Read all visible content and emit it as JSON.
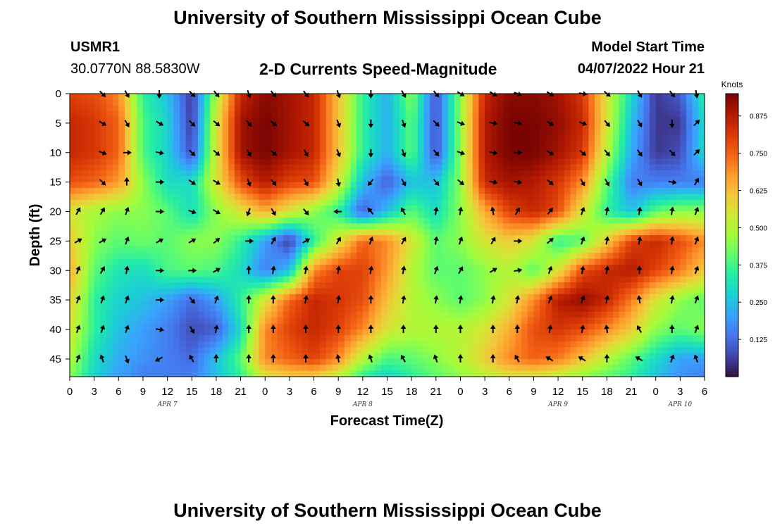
{
  "header": {
    "title": "University of Southern Mississippi Ocean Cube",
    "station": "USMR1",
    "coords": "30.0770N  88.5830W",
    "subtitle": "2-D Currents Speed-Magnitude",
    "model_label": "Model Start Time",
    "model_time": "04/07/2022 Hour 21",
    "footer_title": "University of Southern Mississippi Ocean Cube"
  },
  "colors": {
    "colormap": [
      "#30123b",
      "#4145ab",
      "#4675ed",
      "#39a2fc",
      "#1bcfd4",
      "#24eca6",
      "#61fc6c",
      "#a4fc3b",
      "#d1e834",
      "#f3c63a",
      "#fe9b2d",
      "#f36315",
      "#d93806",
      "#b11901",
      "#7a0402"
    ],
    "arrow": "#000000"
  },
  "chart_data": {
    "type": "heatmap",
    "title": "2-D Currents Speed-Magnitude",
    "xlabel": "Forecast Time(Z)",
    "ylabel": "Depth (ft)",
    "x_range_hours": [
      0,
      78
    ],
    "y_range_ft": [
      0,
      48
    ],
    "y_inverted": true,
    "x_tick_hours": [
      0,
      3,
      6,
      9,
      12,
      15,
      18,
      21,
      24,
      27,
      30,
      33,
      36,
      39,
      42,
      45,
      48,
      51,
      54,
      57,
      60,
      63,
      66,
      69,
      72,
      75,
      78
    ],
    "x_tick_labels": [
      "0",
      "3",
      "6",
      "9",
      "12",
      "15",
      "18",
      "21",
      "0",
      "3",
      "6",
      "9",
      "12",
      "15",
      "18",
      "21",
      "0",
      "3",
      "6",
      "9",
      "12",
      "15",
      "18",
      "21",
      "0",
      "3",
      "6"
    ],
    "y_ticks": [
      0,
      5,
      10,
      15,
      20,
      25,
      30,
      35,
      40,
      45
    ],
    "date_labels": [
      {
        "text": "APR 7",
        "hour": 12
      },
      {
        "text": "APR 8",
        "hour": 36
      },
      {
        "text": "APR 9",
        "hour": 60
      },
      {
        "text": "APR 10",
        "hour": 75
      }
    ],
    "colorbar": {
      "label": "Knots",
      "min": 0.0,
      "max": 0.95,
      "ticks": [
        "0.875",
        "0.750",
        "0.625",
        "0.500",
        "0.375",
        "0.250",
        "0.125"
      ],
      "tick_values": [
        0.875,
        0.75,
        0.625,
        0.5,
        0.375,
        0.25,
        0.125
      ]
    },
    "speed_hours": [
      0,
      3,
      6,
      9,
      12,
      15,
      18,
      21,
      24,
      27,
      30,
      33,
      36,
      39,
      42,
      45,
      48,
      51,
      54,
      57,
      60,
      63,
      66,
      69,
      72,
      75,
      78
    ],
    "speed_depths_ft": [
      0,
      5,
      10,
      15,
      20,
      25,
      30,
      35,
      40,
      45,
      48
    ],
    "speed_knots": [
      [
        0.8,
        0.78,
        0.7,
        0.35,
        0.25,
        0.05,
        0.48,
        0.85,
        0.93,
        0.9,
        0.85,
        0.62,
        0.35,
        0.22,
        0.45,
        0.08,
        0.45,
        0.85,
        0.93,
        0.93,
        0.9,
        0.82,
        0.55,
        0.3,
        0.05,
        0.1,
        0.35
      ],
      [
        0.85,
        0.82,
        0.75,
        0.38,
        0.28,
        0.05,
        0.55,
        0.9,
        0.95,
        0.9,
        0.85,
        0.62,
        0.35,
        0.22,
        0.4,
        0.08,
        0.45,
        0.88,
        0.95,
        0.95,
        0.92,
        0.85,
        0.55,
        0.25,
        0.05,
        0.05,
        0.3
      ],
      [
        0.85,
        0.82,
        0.75,
        0.38,
        0.28,
        0.08,
        0.55,
        0.9,
        0.95,
        0.9,
        0.85,
        0.62,
        0.35,
        0.22,
        0.4,
        0.08,
        0.45,
        0.88,
        0.95,
        0.95,
        0.9,
        0.82,
        0.5,
        0.22,
        0.05,
        0.08,
        0.3
      ],
      [
        0.78,
        0.75,
        0.68,
        0.45,
        0.3,
        0.3,
        0.55,
        0.78,
        0.88,
        0.8,
        0.78,
        0.55,
        0.25,
        0.1,
        0.25,
        0.25,
        0.45,
        0.85,
        0.9,
        0.88,
        0.82,
        0.7,
        0.4,
        0.15,
        0.15,
        0.15,
        0.15
      ],
      [
        0.55,
        0.48,
        0.45,
        0.45,
        0.4,
        0.3,
        0.45,
        0.55,
        0.65,
        0.55,
        0.45,
        0.35,
        0.1,
        0.25,
        0.4,
        0.3,
        0.45,
        0.65,
        0.8,
        0.85,
        0.78,
        0.55,
        0.35,
        0.25,
        0.4,
        0.45,
        0.45
      ],
      [
        0.6,
        0.45,
        0.4,
        0.42,
        0.4,
        0.45,
        0.45,
        0.35,
        0.2,
        0.05,
        0.35,
        0.55,
        0.75,
        0.7,
        0.55,
        0.4,
        0.45,
        0.55,
        0.6,
        0.55,
        0.35,
        0.4,
        0.6,
        0.8,
        0.85,
        0.78,
        0.7
      ],
      [
        0.65,
        0.4,
        0.32,
        0.3,
        0.38,
        0.4,
        0.38,
        0.3,
        0.15,
        0.25,
        0.7,
        0.8,
        0.8,
        0.68,
        0.5,
        0.4,
        0.4,
        0.45,
        0.5,
        0.4,
        0.55,
        0.78,
        0.85,
        0.88,
        0.8,
        0.72,
        0.6
      ],
      [
        0.6,
        0.35,
        0.28,
        0.25,
        0.2,
        0.12,
        0.2,
        0.35,
        0.55,
        0.75,
        0.85,
        0.82,
        0.78,
        0.62,
        0.5,
        0.45,
        0.4,
        0.45,
        0.55,
        0.7,
        0.88,
        0.92,
        0.85,
        0.72,
        0.55,
        0.45,
        0.4
      ],
      [
        0.55,
        0.35,
        0.25,
        0.2,
        0.15,
        0.08,
        0.1,
        0.3,
        0.7,
        0.8,
        0.85,
        0.8,
        0.7,
        0.55,
        0.5,
        0.5,
        0.5,
        0.55,
        0.65,
        0.78,
        0.82,
        0.78,
        0.7,
        0.6,
        0.45,
        0.4,
        0.45
      ],
      [
        0.5,
        0.3,
        0.22,
        0.18,
        0.15,
        0.12,
        0.25,
        0.4,
        0.7,
        0.75,
        0.8,
        0.7,
        0.5,
        0.38,
        0.4,
        0.45,
        0.5,
        0.6,
        0.7,
        0.75,
        0.72,
        0.62,
        0.5,
        0.4,
        0.3,
        0.2,
        0.2
      ],
      [
        0.45,
        0.28,
        0.2,
        0.15,
        0.15,
        0.15,
        0.25,
        0.35,
        0.55,
        0.6,
        0.6,
        0.5,
        0.35,
        0.28,
        0.35,
        0.4,
        0.45,
        0.5,
        0.55,
        0.55,
        0.5,
        0.45,
        0.4,
        0.35,
        0.25,
        0.18,
        0.15
      ]
    ],
    "arrow_hours": [
      1,
      4,
      7,
      11,
      15,
      18,
      22,
      25,
      29,
      33,
      37,
      41,
      45,
      48,
      52,
      55,
      59,
      63,
      66,
      70,
      74,
      77
    ],
    "arrow_depths_ft": [
      0,
      5,
      10,
      15,
      20,
      25,
      30,
      35,
      40,
      45
    ],
    "arrow_direction_deg": [
      [
        null,
        135,
        150,
        180,
        135,
        140,
        160,
        140,
        140,
        160,
        180,
        150,
        140,
        120,
        120,
        110,
        120,
        100,
        130,
        150,
        140,
        170
      ],
      [
        null,
        120,
        150,
        120,
        135,
        130,
        140,
        130,
        130,
        160,
        180,
        160,
        135,
        110,
        100,
        100,
        120,
        110,
        140,
        150,
        180,
        45
      ],
      [
        null,
        110,
        90,
        100,
        135,
        130,
        150,
        130,
        150,
        160,
        180,
        160,
        140,
        110,
        100,
        90,
        120,
        130,
        140,
        145,
        135,
        45
      ],
      [
        null,
        135,
        0,
        90,
        125,
        120,
        160,
        140,
        150,
        170,
        220,
        150,
        140,
        130,
        100,
        100,
        130,
        150,
        150,
        150,
        100,
        30
      ],
      [
        30,
        30,
        20,
        90,
        110,
        120,
        200,
        150,
        140,
        270,
        320,
        330,
        10,
        10,
        350,
        30,
        40,
        20,
        10,
        10,
        10,
        20
      ],
      [
        60,
        60,
        20,
        60,
        60,
        50,
        90,
        30,
        60,
        30,
        20,
        30,
        10,
        20,
        30,
        90,
        50,
        20,
        10,
        10,
        10,
        20
      ],
      [
        20,
        30,
        10,
        90,
        90,
        60,
        0,
        10,
        10,
        10,
        10,
        10,
        20,
        30,
        60,
        80,
        20,
        10,
        10,
        0,
        10,
        20
      ],
      [
        20,
        20,
        20,
        90,
        140,
        20,
        0,
        0,
        10,
        10,
        0,
        10,
        10,
        10,
        10,
        10,
        20,
        20,
        10,
        350,
        10,
        20
      ],
      [
        20,
        20,
        20,
        100,
        150,
        10,
        0,
        0,
        0,
        0,
        0,
        0,
        0,
        0,
        0,
        0,
        10,
        10,
        350,
        330,
        0,
        20
      ],
      [
        20,
        340,
        160,
        240,
        330,
        0,
        0,
        0,
        0,
        350,
        340,
        330,
        340,
        0,
        0,
        330,
        300,
        300,
        0,
        300,
        20,
        340
      ]
    ]
  }
}
